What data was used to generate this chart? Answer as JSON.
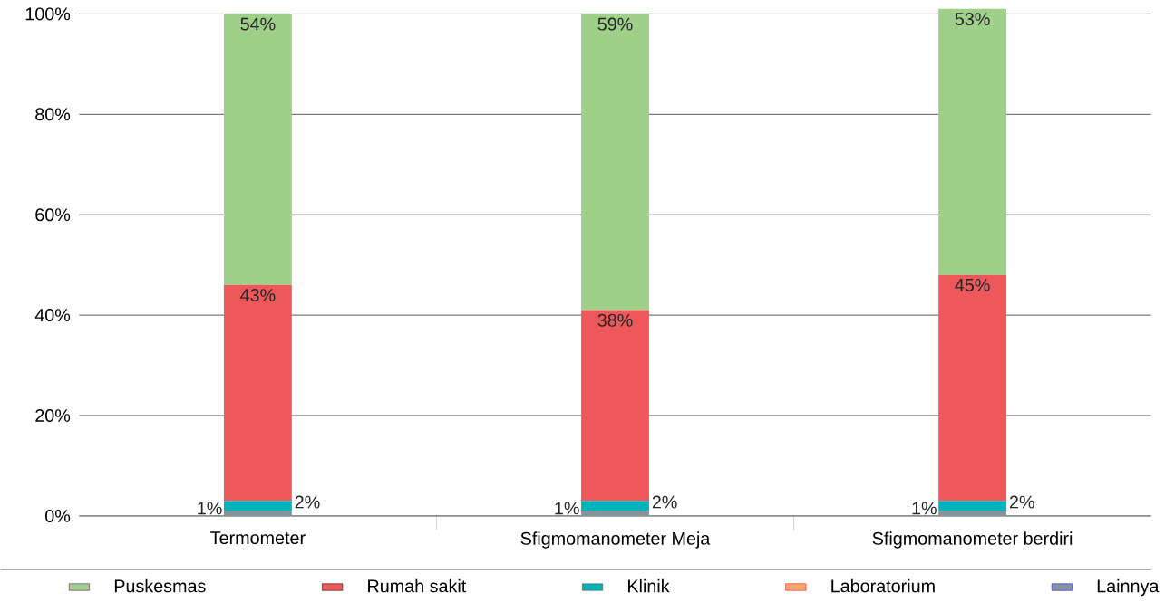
{
  "chart_data": {
    "type": "bar",
    "stacked": true,
    "categories": [
      "Termometer",
      "Sfigmomanometer Meja",
      "Sfigmomanometer berdiri"
    ],
    "series": [
      {
        "name": "Lainnya",
        "color": "#87939a",
        "values": [
          1,
          1,
          1
        ],
        "value_labels": [
          "1%",
          "1%",
          "1%"
        ]
      },
      {
        "name": "Laboratorium",
        "color": "#f9a870",
        "values": [
          0,
          0,
          0
        ]
      },
      {
        "name": "Klinik",
        "color": "#00b3bb",
        "values": [
          2,
          2,
          2
        ],
        "value_labels": [
          "2%",
          "2%",
          "2%"
        ]
      },
      {
        "name": "Rumah sakit",
        "color": "#ef585b",
        "values": [
          43,
          38,
          45
        ],
        "value_labels": [
          "43%",
          "38%",
          "45%"
        ]
      },
      {
        "name": "Puskesmas",
        "color": "#9ed089",
        "values": [
          54,
          59,
          53
        ],
        "value_labels": [
          "54%",
          "59%",
          "53%"
        ]
      }
    ],
    "ylim": [
      0,
      101
    ],
    "yticks": [
      {
        "value": 0,
        "label": "0%"
      },
      {
        "value": 20,
        "label": "20%"
      },
      {
        "value": 40,
        "label": "40%"
      },
      {
        "value": 60,
        "label": "60%"
      },
      {
        "value": 80,
        "label": "80%"
      },
      {
        "value": 100,
        "label": "100%"
      }
    ],
    "grid": "y",
    "legend": "bottom"
  }
}
